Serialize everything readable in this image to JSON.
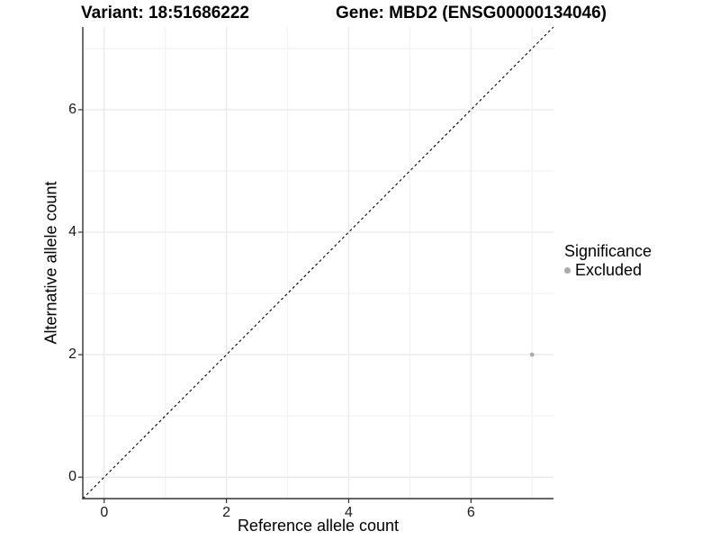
{
  "figure": {
    "background": "#FFFFFF"
  },
  "chart_data": {
    "type": "scatter",
    "title_variant": "Variant: 18:51686222",
    "title_gene": "Gene: MBD2 (ENSG00000134046)",
    "xlabel": "Reference allele count",
    "ylabel": "Alternative allele count",
    "x_ticks": [
      0,
      2,
      4,
      6
    ],
    "y_ticks": [
      0,
      2,
      4,
      6
    ],
    "x_minor_gridlines": [
      1,
      3,
      5,
      7
    ],
    "y_minor_gridlines": [
      1,
      3,
      5,
      7
    ],
    "xlim": [
      -0.35,
      7.35
    ],
    "ylim": [
      -0.35,
      7.35
    ],
    "grid": true,
    "identity_line": {
      "type": "dashed",
      "from": [
        -0.35,
        -0.35
      ],
      "to": [
        7.35,
        7.35
      ],
      "color": "#000000"
    },
    "points": [
      {
        "x": 7,
        "y": 2,
        "significance": "Excluded",
        "color": "#ABABAB"
      }
    ],
    "legend": {
      "title": "Significance",
      "position": "right",
      "items": [
        {
          "label": "Excluded",
          "color": "#ABABAB"
        }
      ]
    },
    "colors": {
      "grid_major": "#EAEAEA",
      "grid_minor": "#F3F3F3",
      "axis_line": "#333333",
      "tick_mark": "#333333",
      "text": "#000000"
    }
  }
}
